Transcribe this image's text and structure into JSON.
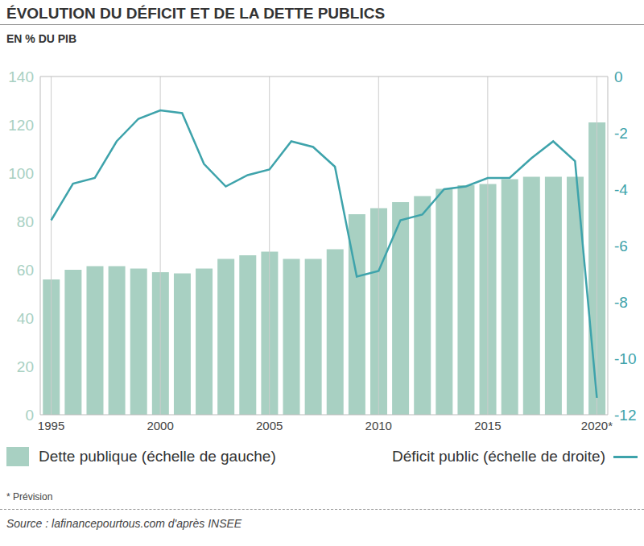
{
  "chart_data": {
    "type": "bar",
    "title": "ÉVOLUTION DU DÉFICIT ET DE LA DETTE PUBLICS",
    "subtitle": "EN % DU PIB",
    "categories": [
      "1995",
      null,
      null,
      null,
      null,
      "2000",
      null,
      null,
      null,
      null,
      "2005",
      null,
      null,
      null,
      null,
      "2010",
      null,
      null,
      null,
      null,
      "2015",
      null,
      null,
      null,
      null,
      "2020*"
    ],
    "series": [
      {
        "name": "Dette publique (échelle de gauche)",
        "type": "bar",
        "color": "#a8d0c2",
        "values": [
          56,
          60,
          61.5,
          61.5,
          60.5,
          59,
          58.5,
          60.5,
          64.5,
          66,
          67.5,
          64.5,
          64.5,
          68.5,
          83,
          85.5,
          88,
          90.5,
          93.5,
          95,
          95.5,
          97.5,
          98.5,
          98.5,
          98.5,
          121
        ]
      },
      {
        "name": "Déficit public (échelle de droite)",
        "type": "line",
        "axis": "y2",
        "color": "#3ea3ab",
        "values": [
          -5.1,
          -3.8,
          -3.6,
          -2.3,
          -1.5,
          -1.2,
          -1.3,
          -3.1,
          -3.9,
          -3.5,
          -3.3,
          -2.3,
          -2.5,
          -3.2,
          -7.1,
          -6.9,
          -5.1,
          -4.9,
          -4.0,
          -3.9,
          -3.6,
          -3.6,
          -2.9,
          -2.3,
          -3.0,
          -11.4
        ]
      }
    ],
    "ylim": [
      0,
      140
    ],
    "yticks": [
      0,
      20,
      40,
      60,
      80,
      100,
      120,
      140
    ],
    "y2lim": [
      -12,
      0
    ],
    "y2ticks": [
      0,
      -2,
      -4,
      -6,
      -8,
      -10,
      -12
    ],
    "grid": true,
    "legend": "bottom",
    "note": "* Prévision",
    "source": "Source : lafinancepourtous.com d'après INSEE"
  }
}
